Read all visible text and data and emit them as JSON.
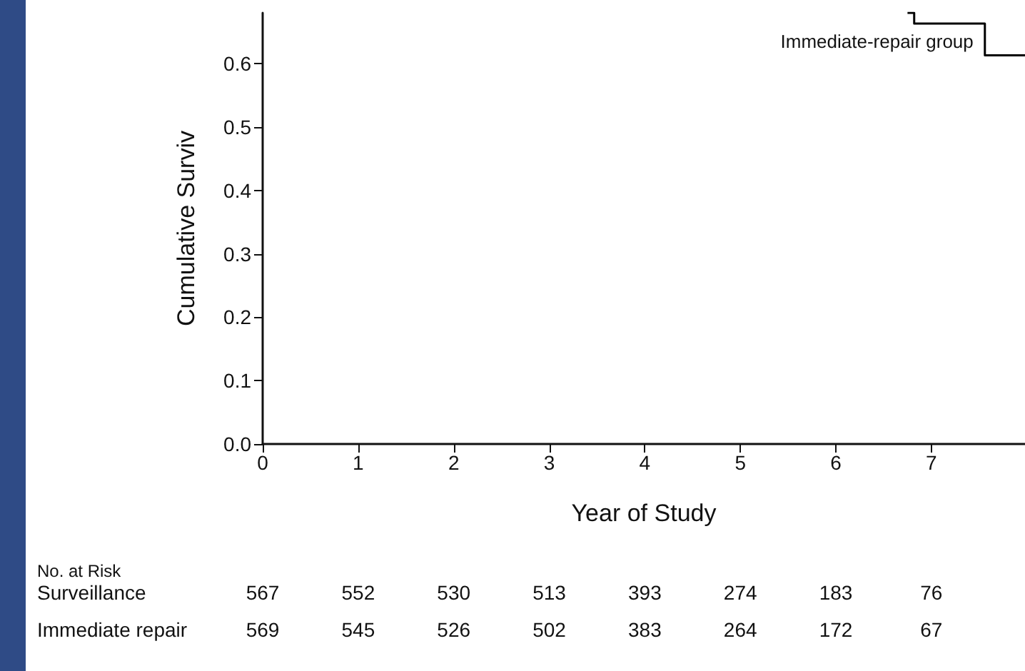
{
  "chart_data": {
    "type": "step",
    "xlabel": "Year of Study",
    "ylabel": "Cumulative Surviv",
    "x": [
      6.75,
      6.82,
      7.56,
      7.98
    ],
    "series": [
      {
        "name": "Immediate-repair group",
        "color": "#000000",
        "values": [
          0.68,
          0.663,
          0.613,
          0.613
        ]
      }
    ],
    "xlim": [
      0,
      7.98
    ],
    "xticks": [
      0,
      1,
      2,
      3,
      4,
      5,
      6,
      7
    ],
    "ylim": [
      0,
      0.68
    ],
    "yticks": [
      {
        "value": 0,
        "label": "0.0"
      },
      0.1,
      0.2,
      0.3,
      0.4,
      0.5,
      0.6
    ],
    "grid": false,
    "legend": false,
    "marker": "none",
    "line_style": "solid",
    "annotations": [
      "No. at Risk",
      "Surveillance",
      "567",
      "552",
      "530",
      "513",
      "393",
      "274",
      "183",
      "76",
      "Immediate repair",
      "569",
      "545",
      "526",
      "502",
      "383",
      "264",
      "172",
      "67"
    ]
  }
}
